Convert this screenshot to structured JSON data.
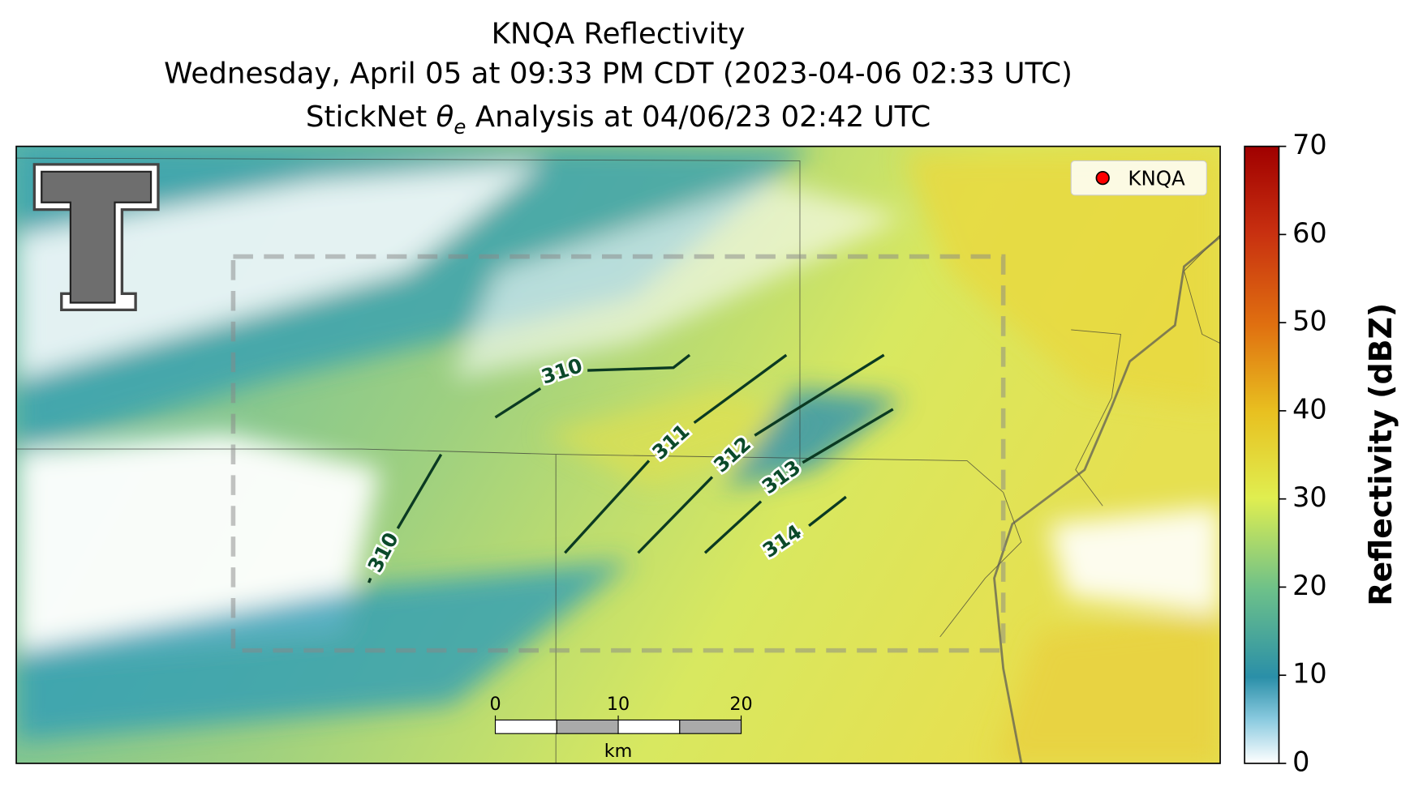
{
  "title": {
    "line1": "KNQA Reflectivity",
    "line2": "Wednesday, April 05 at 09:33 PM CDT (2023-04-06 02:33 UTC)",
    "line3": {
      "before": "StickNet ",
      "symbol": "θ",
      "subscript": "e",
      "after": " Analysis at 04/06/23 02:42 UTC"
    }
  },
  "legend": {
    "label": "KNQA",
    "color": "#ff0000"
  },
  "colorbar": {
    "label": "Reflectivity (dBZ)",
    "lim": [
      0,
      70
    ],
    "ticks": [
      0,
      10,
      20,
      30,
      40,
      50,
      60,
      70
    ]
  },
  "contours": [
    {
      "level": 310
    },
    {
      "level": 310
    },
    {
      "level": 311
    },
    {
      "level": 312
    },
    {
      "level": 313
    },
    {
      "level": 314
    }
  ],
  "scalebar": {
    "lim": [
      0,
      20
    ],
    "ticks": [
      0,
      10,
      20
    ],
    "unit": "km"
  }
}
